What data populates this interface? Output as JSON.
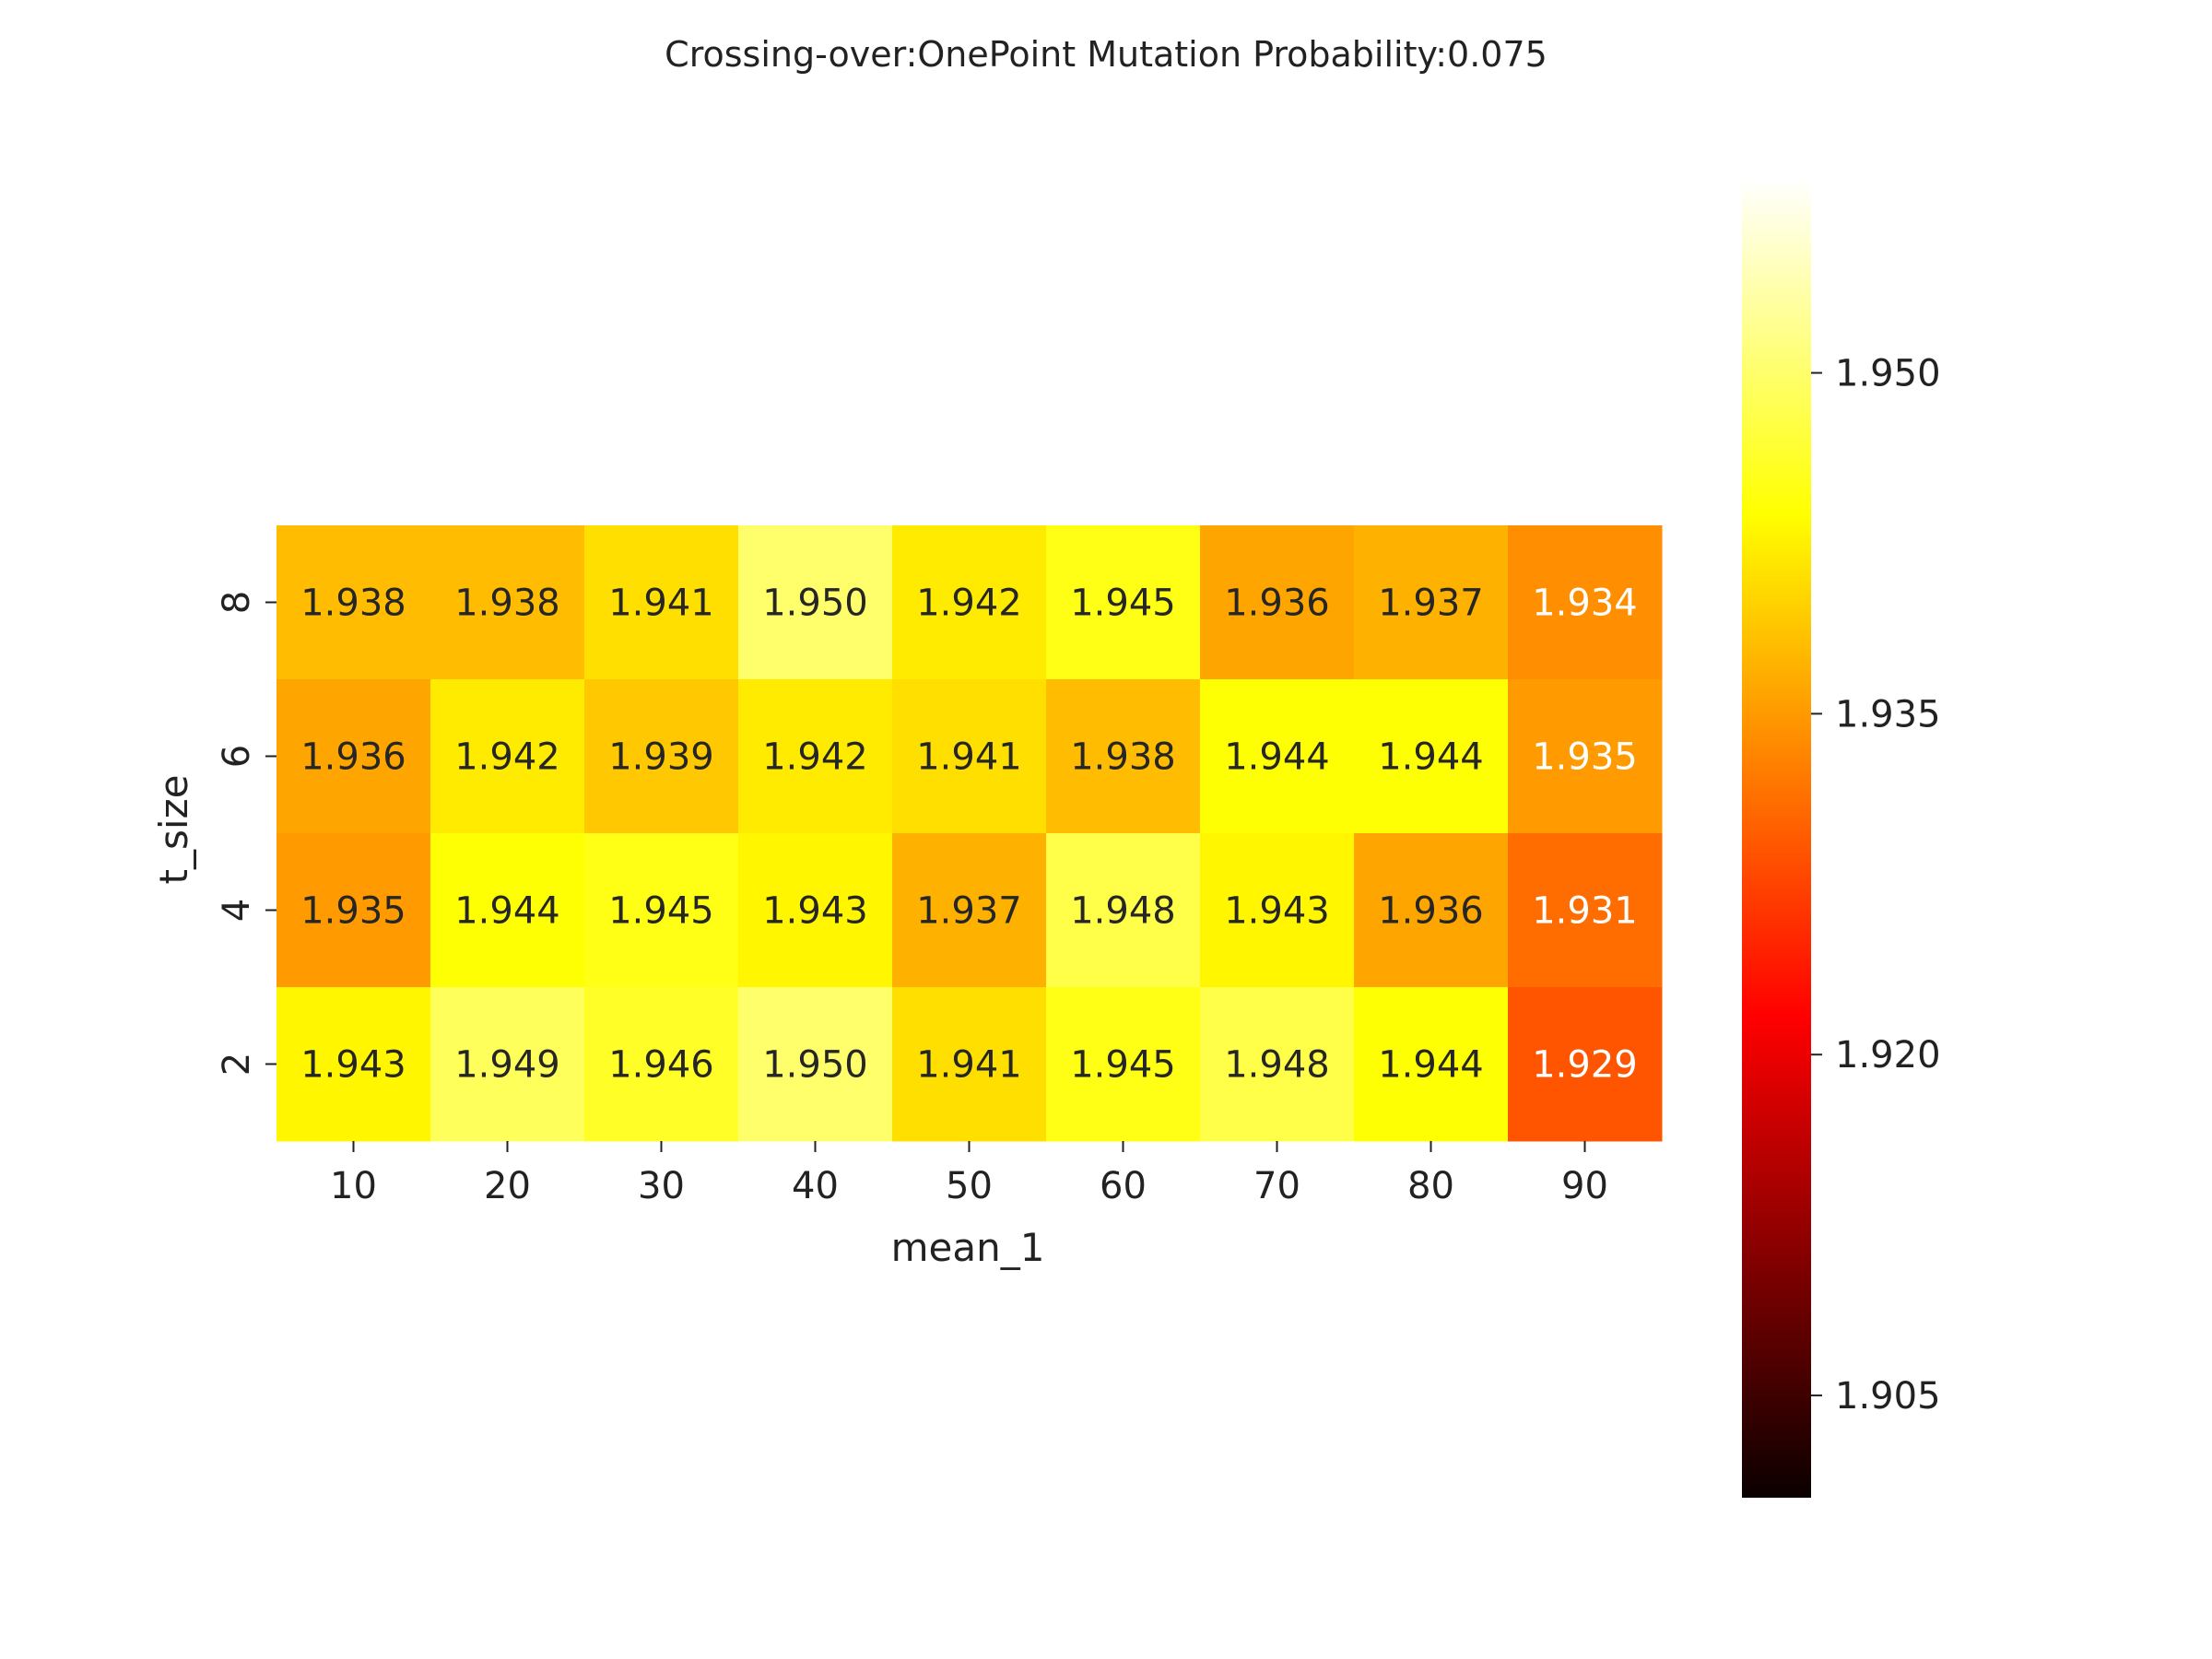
{
  "chart_data": {
    "type": "heatmap",
    "title": "Crossing-over:OnePoint Mutation Probability:0.075",
    "xlabel": "mean_1",
    "ylabel": "t_size",
    "x": [
      "10",
      "20",
      "30",
      "40",
      "50",
      "60",
      "70",
      "80",
      "90"
    ],
    "y": [
      "8",
      "6",
      "4",
      "2"
    ],
    "values": [
      [
        1.938,
        1.938,
        1.941,
        1.95,
        1.942,
        1.945,
        1.936,
        1.937,
        1.934
      ],
      [
        1.936,
        1.942,
        1.939,
        1.942,
        1.941,
        1.938,
        1.944,
        1.944,
        1.935
      ],
      [
        1.935,
        1.944,
        1.945,
        1.943,
        1.937,
        1.948,
        1.943,
        1.936,
        1.931
      ],
      [
        1.943,
        1.949,
        1.946,
        1.95,
        1.941,
        1.945,
        1.948,
        1.944,
        1.929
      ]
    ],
    "labels": [
      [
        "1.938",
        "1.938",
        "1.941",
        "1.950",
        "1.942",
        "1.945",
        "1.936",
        "1.937",
        "1.934"
      ],
      [
        "1.936",
        "1.942",
        "1.939",
        "1.942",
        "1.941",
        "1.938",
        "1.944",
        "1.944",
        "1.935"
      ],
      [
        "1.935",
        "1.944",
        "1.945",
        "1.943",
        "1.937",
        "1.948",
        "1.943",
        "1.936",
        "1.931"
      ],
      [
        "1.943",
        "1.949",
        "1.946",
        "1.950",
        "1.941",
        "1.945",
        "1.948",
        "1.944",
        "1.929"
      ]
    ],
    "colormap": "hot",
    "color_range": [
      1.9005,
      1.9585
    ],
    "colorbar": {
      "ticks": [
        1.905,
        1.92,
        1.935,
        1.95
      ],
      "tick_labels": [
        "1.905",
        "1.920",
        "1.935",
        "1.950"
      ],
      "placement": "right"
    },
    "grid": false,
    "legend": "none"
  }
}
